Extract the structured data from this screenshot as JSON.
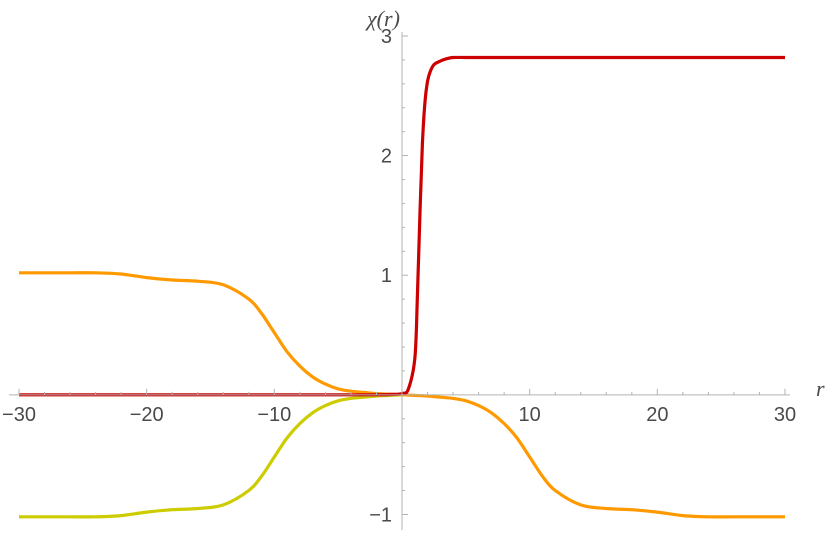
{
  "chart_data": {
    "type": "line",
    "xlabel": "r",
    "ylabel": "χ(r)",
    "xlim": [
      -30,
      30
    ],
    "ylim": [
      -1.13,
      3.05
    ],
    "x_ticks": [
      -30,
      -20,
      -10,
      10,
      20,
      30
    ],
    "x_tick_labels": [
      "−30",
      "−20",
      "−10",
      "10",
      "20",
      "30"
    ],
    "y_ticks": [
      -1,
      1,
      2,
      3
    ],
    "y_tick_labels": [
      "−1",
      "1",
      "2",
      "3"
    ],
    "grid": false,
    "series": [
      {
        "color": "#ff9900",
        "x": [
          -30,
          -28,
          -26,
          -24,
          -22,
          -20,
          -18,
          -16,
          -14,
          -12,
          -11,
          -10,
          -9,
          -8,
          -7,
          -6,
          -5,
          -4,
          -3,
          -2,
          -1,
          0
        ],
        "values": [
          1.02,
          1.02,
          1.02,
          1.02,
          1.01,
          0.98,
          0.96,
          0.95,
          0.92,
          0.8,
          0.68,
          0.52,
          0.36,
          0.24,
          0.15,
          0.09,
          0.05,
          0.03,
          0.02,
          0.01,
          0.005,
          0.0
        ]
      },
      {
        "color": "#ff9900",
        "x": [
          0,
          1,
          2,
          3,
          4,
          5,
          6,
          7,
          8,
          9,
          10,
          11,
          12,
          14,
          16,
          18,
          20,
          22,
          24,
          26,
          28,
          30
        ],
        "values": [
          0.0,
          -0.005,
          -0.01,
          -0.02,
          -0.03,
          -0.05,
          -0.09,
          -0.15,
          -0.24,
          -0.36,
          -0.52,
          -0.68,
          -0.8,
          -0.92,
          -0.95,
          -0.96,
          -0.98,
          -1.01,
          -1.02,
          -1.02,
          -1.02,
          -1.02
        ]
      },
      {
        "color": "#cccc00",
        "x": [
          -30,
          -28,
          -26,
          -24,
          -22,
          -20,
          -18,
          -16,
          -14,
          -12,
          -11,
          -10,
          -9,
          -8,
          -7,
          -6,
          -5,
          -4,
          -3,
          -2,
          -1,
          0
        ],
        "values": [
          -1.02,
          -1.02,
          -1.02,
          -1.02,
          -1.01,
          -0.98,
          -0.96,
          -0.95,
          -0.92,
          -0.8,
          -0.68,
          -0.52,
          -0.36,
          -0.24,
          -0.15,
          -0.09,
          -0.05,
          -0.03,
          -0.02,
          -0.01,
          -0.005,
          0.0
        ]
      },
      {
        "color": "#cc0000",
        "x": [
          -30,
          -20,
          -10,
          -5,
          -2,
          -1,
          0,
          0.5,
          1.0,
          1.2,
          1.4,
          1.6,
          1.8,
          2.0,
          2.2,
          2.5,
          3.0,
          3.5,
          4.0,
          5.0,
          6.0,
          8.0,
          10,
          15,
          20,
          30
        ],
        "values": [
          0.0,
          0.0,
          0.0,
          0.0,
          0.0,
          0.003,
          0.01,
          0.05,
          0.3,
          0.8,
          1.5,
          2.1,
          2.45,
          2.62,
          2.7,
          2.76,
          2.79,
          2.81,
          2.82,
          2.82,
          2.82,
          2.82,
          2.82,
          2.82,
          2.82,
          2.82
        ]
      }
    ]
  }
}
